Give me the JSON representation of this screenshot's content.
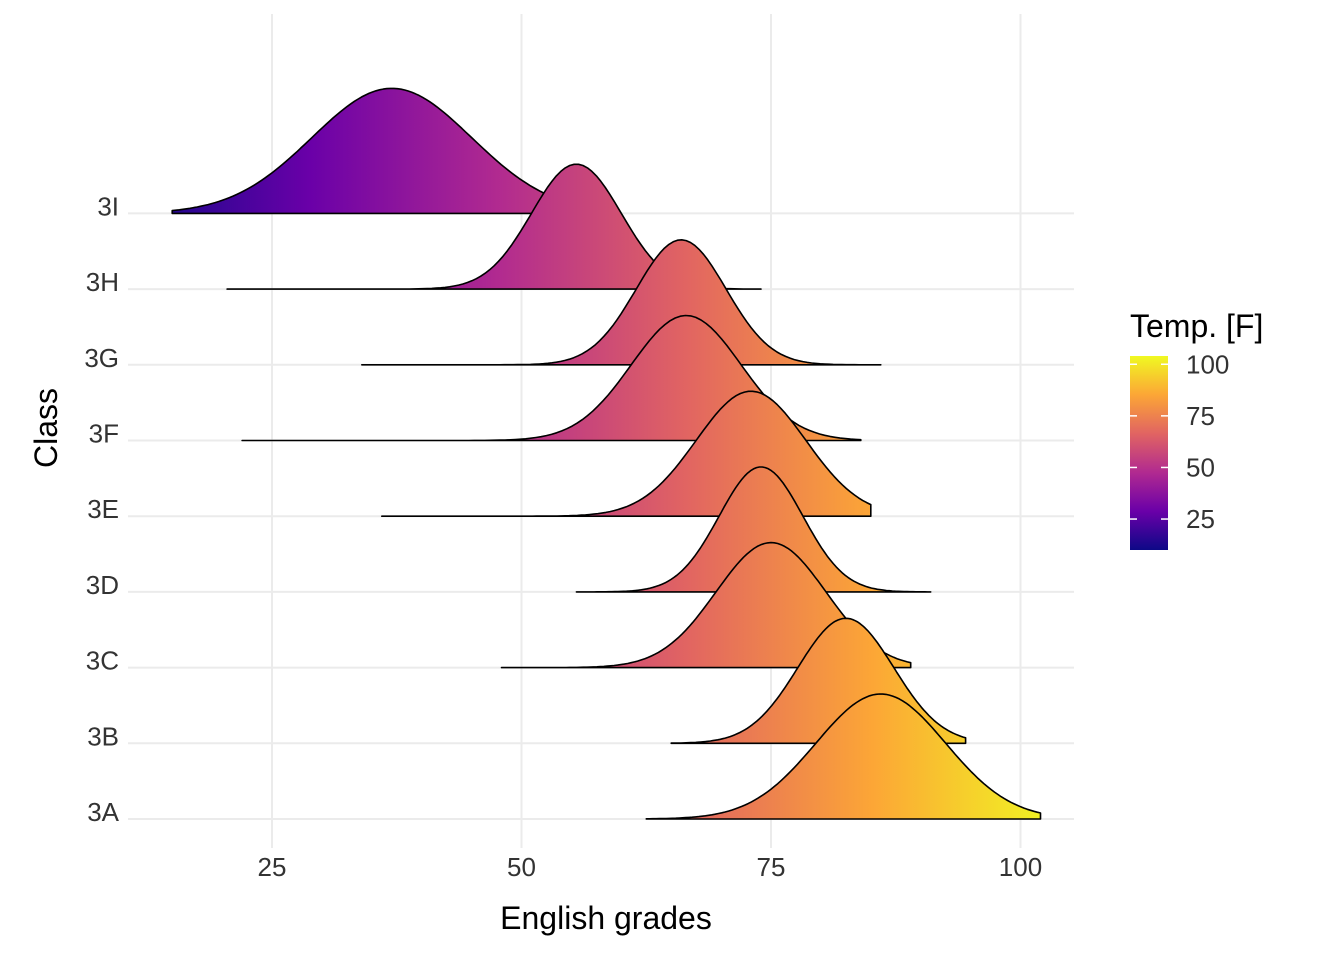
{
  "chart_data": {
    "type": "ridgeline",
    "xlabel": "English grades",
    "ylabel": "Class",
    "xlim": [
      10,
      106
    ],
    "x_ticks": [
      25,
      50,
      75,
      100
    ],
    "x_tick_labels": [
      "25",
      "50",
      "75",
      "100"
    ],
    "grid": true,
    "legend": {
      "title": "Temp. [F]",
      "position": "right",
      "range": [
        10,
        104
      ],
      "ticks": [
        25,
        50,
        75,
        100
      ],
      "tick_labels": [
        "25",
        "50",
        "75",
        "100"
      ]
    },
    "categories": [
      "3A",
      "3B",
      "3C",
      "3D",
      "3E",
      "3F",
      "3G",
      "3H",
      "3I"
    ],
    "series": [
      {
        "class": "3A",
        "x_range": [
          62.5,
          102
        ],
        "peak": 86,
        "sd": 6.5
      },
      {
        "class": "3B",
        "x_range": [
          65,
          94.5
        ],
        "peak": 82.5,
        "sd": 4.8
      },
      {
        "class": "3C",
        "x_range": [
          48,
          89
        ],
        "peak": 75,
        "sd": 5.5
      },
      {
        "class": "3D",
        "x_range": [
          55.5,
          91
        ],
        "peak": 74,
        "sd": 4.2
      },
      {
        "class": "3E",
        "x_range": [
          36,
          85
        ],
        "peak": 73,
        "sd": 5.5
      },
      {
        "class": "3F",
        "x_range": [
          22,
          84
        ],
        "peak": 66.5,
        "sd": 5.5
      },
      {
        "class": "3G",
        "x_range": [
          34,
          86
        ],
        "peak": 66,
        "sd": 4.5
      },
      {
        "class": "3H",
        "x_range": [
          20.5,
          74
        ],
        "peak": 55.5,
        "sd": 4.5
      },
      {
        "class": "3I",
        "x_range": [
          15,
          58
        ],
        "peak": 37,
        "sd": 8
      }
    ],
    "colors": {
      "palette": [
        "#0d0887",
        "#6a00a8",
        "#b12a90",
        "#e16462",
        "#fca636",
        "#f0f921"
      ],
      "grid": "#ebebeb",
      "outline": "#000000"
    }
  }
}
